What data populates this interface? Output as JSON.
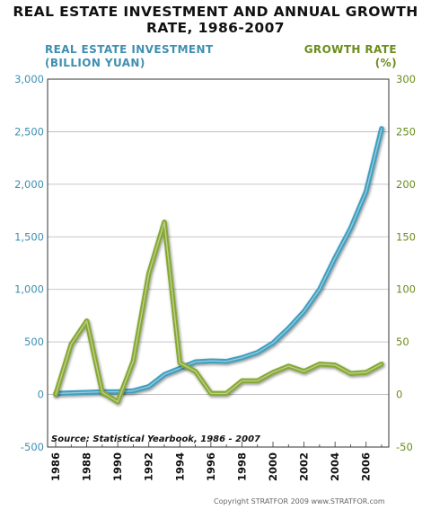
{
  "title_lines": [
    "REAL ESTATE INVESTMENT AND ANNUAL GROWTH",
    "RATE, 1986-2007"
  ],
  "left_axis_title_lines": [
    "REAL ESTATE INVESTMENT",
    "(BILLION YUAN)"
  ],
  "right_axis_title_lines": [
    "GROWTH RATE",
    "(%)"
  ],
  "source": "Source: Statistical Yearbook, 1986 - 2007",
  "copyright": "Copyright STRATFOR 2009   www.STRATFOR.com",
  "colors": {
    "investment": "#3f9fc0",
    "growth": "#86a830",
    "left_axis": "#3f8fb0",
    "right_axis": "#6b8d1c",
    "background": "#ffffff"
  },
  "chart_data": {
    "type": "line",
    "grid": true,
    "x": [
      1986,
      1987,
      1988,
      1989,
      1990,
      1991,
      1992,
      1993,
      1994,
      1995,
      1996,
      1997,
      1998,
      1999,
      2000,
      2001,
      2002,
      2003,
      2004,
      2005,
      2006,
      2007
    ],
    "x_tick_labels": [
      "1986",
      "1988",
      "1990",
      "1992",
      "1994",
      "1996",
      "1998",
      "2000",
      "2002",
      "2004",
      "2006"
    ],
    "y_left": {
      "range": [
        -500,
        3000
      ],
      "tick_labels": [
        "3,000",
        "2,500",
        "2,000",
        "1,500",
        "1,000",
        "500",
        "0",
        "-500"
      ]
    },
    "y_right": {
      "range": [
        -50,
        300
      ],
      "tick_labels": [
        "300",
        "250",
        "200",
        "150",
        "100",
        "50",
        "0",
        "-50"
      ]
    },
    "series": [
      {
        "name": "REAL ESTATE INVESTMENT",
        "axis": "left",
        "values": [
          10,
          15,
          20,
          25,
          25,
          35,
          75,
          190,
          250,
          310,
          320,
          315,
          350,
          400,
          490,
          630,
          790,
          1000,
          1300,
          1580,
          1930,
          2530
        ]
      },
      {
        "name": "GROWTH RATE",
        "axis": "right",
        "values": [
          0,
          48,
          70,
          2,
          -7,
          32,
          115,
          164,
          30,
          22,
          1,
          1,
          13,
          13,
          21,
          27,
          22,
          29,
          28,
          20,
          21,
          29
        ]
      }
    ]
  }
}
